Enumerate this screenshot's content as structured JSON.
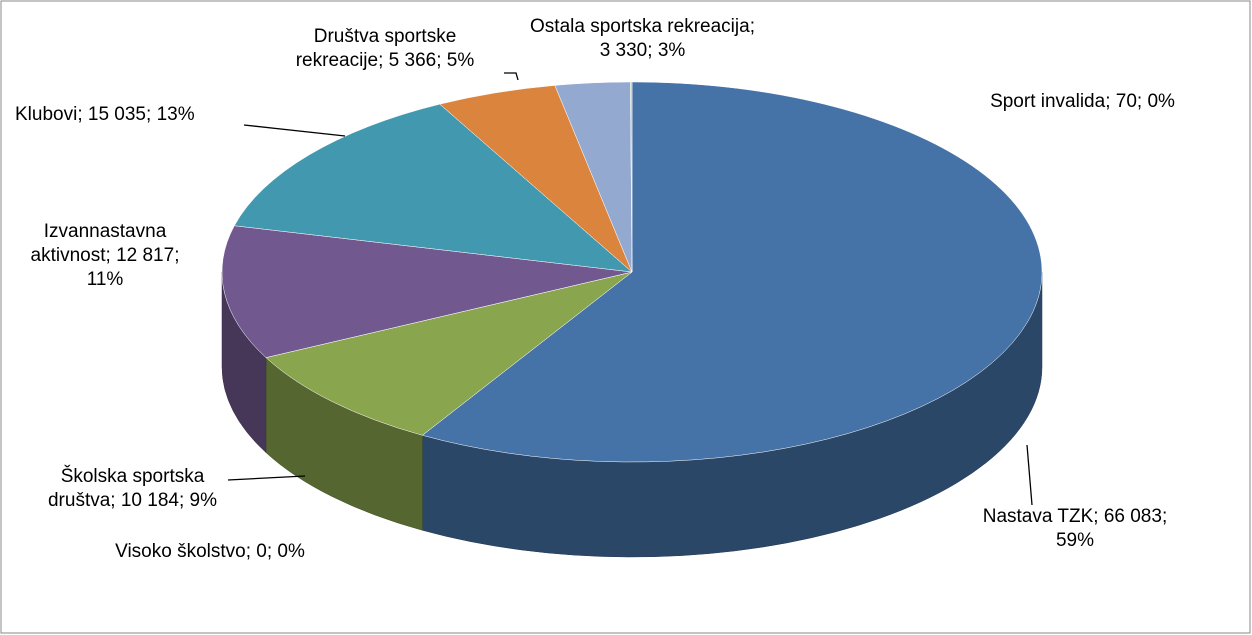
{
  "chart_data": {
    "type": "pie",
    "categories": [
      "Nastava TZK",
      "Školska sportska društva",
      "Visoko školstvo",
      "Izvannastavna aktivnost",
      "Klubovi",
      "Društva sportske rekreacije",
      "Ostala sportska rekreacija",
      "Sport invalida"
    ],
    "values": [
      66083,
      10184,
      0,
      12817,
      15035,
      5366,
      3330,
      70
    ],
    "value_labels": [
      "66 083",
      "10 184",
      "0",
      "12 817",
      "15 035",
      "5 366",
      "3 330",
      "70"
    ],
    "percents": [
      59,
      9,
      0,
      11,
      13,
      5,
      3,
      0
    ],
    "percent_labels": [
      "59%",
      "9%",
      "0%",
      "11%",
      "13%",
      "5%",
      "3%",
      "0%"
    ],
    "label_separator": "; ",
    "colors": [
      "#4572a7",
      "#89a54e",
      "#aa4643",
      "#71588f",
      "#4198af",
      "#db843d",
      "#93a9cf",
      "#b9cd96"
    ]
  }
}
